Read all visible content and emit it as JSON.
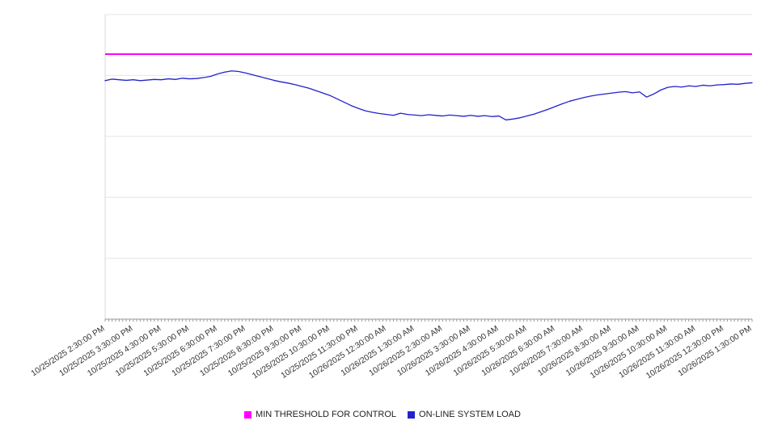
{
  "chart_data": {
    "type": "line",
    "title": "",
    "x_axis": {
      "labels": [
        "10/25/2025 2:30:00 PM",
        "10/25/2025 3:30:00 PM",
        "10/25/2025 4:30:00 PM",
        "10/25/2025 5:30:00 PM",
        "10/25/2025 6:30:00 PM",
        "10/25/2025 7:30:00 PM",
        "10/25/2025 8:30:00 PM",
        "10/25/2025 9:30:00 PM",
        "10/25/2025 10:30:00 PM",
        "10/25/2025 11:30:00 PM",
        "10/26/2025 12:30:00 AM",
        "10/26/2025 1:30:00 AM",
        "10/26/2025 2:30:00 AM",
        "10/26/2025 3:30:00 AM",
        "10/26/2025 4:30:00 AM",
        "10/26/2025 5:30:00 AM",
        "10/26/2025 6:30:00 AM",
        "10/26/2025 7:30:00 AM",
        "10/26/2025 8:30:00 AM",
        "10/26/2025 9:30:00 AM",
        "10/26/2025 10:30:00 AM",
        "10/26/2025 11:30:00 AM",
        "10/26/2025 12:30:00 PM",
        "10/26/2025 1:30:00 PM"
      ],
      "label_interval_hours": 1,
      "label_rotation_deg": -33
    },
    "y_axis": {
      "min": 0,
      "max": 100,
      "labels_visible": false,
      "gridline_count": 5
    },
    "grid": "horizontal",
    "legend_position": "bottom",
    "series": [
      {
        "name": "MIN THRESHOLD FOR CONTROL",
        "type": "threshold",
        "color": "#ff00ff",
        "value": 87
      },
      {
        "name": "ON-LINE SYSTEM LOAD",
        "type": "line",
        "color": "#2222cc",
        "start_offset_hours": 0,
        "sample_interval_hours": 0.25,
        "values": [
          78.3,
          78.8,
          78.6,
          78.4,
          78.6,
          78.3,
          78.5,
          78.7,
          78.6,
          78.9,
          78.7,
          79.1,
          78.9,
          79.0,
          79.3,
          79.7,
          80.5,
          81.1,
          81.5,
          81.3,
          80.8,
          80.2,
          79.6,
          79.0,
          78.4,
          77.9,
          77.5,
          77.0,
          76.4,
          75.8,
          75.0,
          74.2,
          73.4,
          72.3,
          71.2,
          70.1,
          69.2,
          68.4,
          67.9,
          67.5,
          67.2,
          66.9,
          67.6,
          67.2,
          67.0,
          66.8,
          67.1,
          66.9,
          66.7,
          67.0,
          66.8,
          66.6,
          66.9,
          66.6,
          66.8,
          66.5,
          66.7,
          65.4,
          65.7,
          66.1,
          66.7,
          67.3,
          68.1,
          68.9,
          69.8,
          70.7,
          71.5,
          72.1,
          72.7,
          73.2,
          73.6,
          73.9,
          74.2,
          74.5,
          74.7,
          74.3,
          74.6,
          72.9,
          73.9,
          75.2,
          76.1,
          76.4,
          76.2,
          76.6,
          76.4,
          76.8,
          76.6,
          76.9,
          77.0,
          77.2,
          77.1,
          77.4,
          77.6
        ]
      }
    ]
  },
  "legend": {
    "items": [
      {
        "label": "MIN THRESHOLD FOR CONTROL",
        "color": "#ff00ff"
      },
      {
        "label": "ON-LINE SYSTEM LOAD",
        "color": "#2222cc"
      }
    ]
  }
}
